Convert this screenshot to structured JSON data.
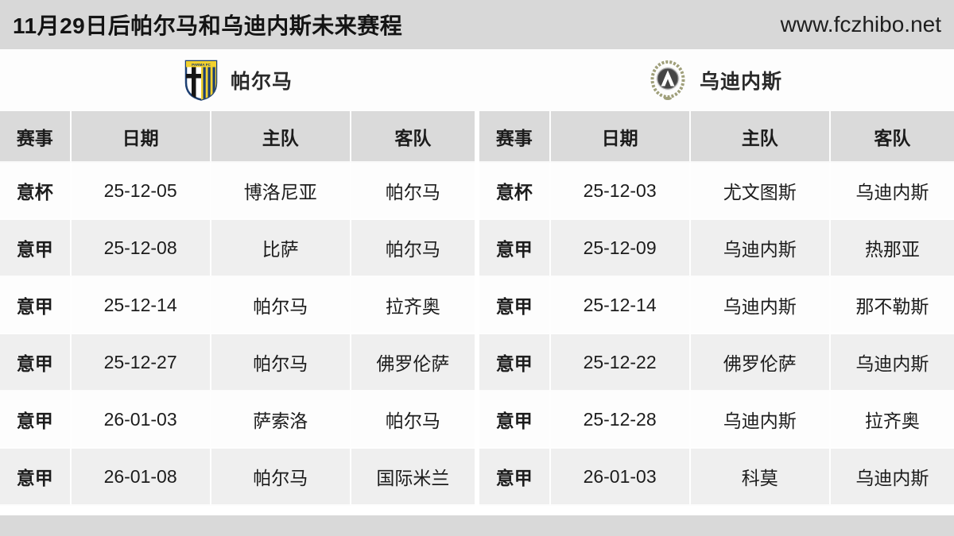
{
  "header": {
    "title": "11月29日后帕尔马和乌迪内斯未来赛程",
    "site": "www.fczhibo.net"
  },
  "teams": [
    {
      "name": "帕尔马",
      "crest": "parma-crest"
    },
    {
      "name": "乌迪内斯",
      "crest": "udinese-crest"
    }
  ],
  "columns": [
    "赛事",
    "日期",
    "主队",
    "客队"
  ],
  "tables": [
    {
      "team": "帕尔马",
      "rows": [
        [
          "意杯",
          "25-12-05",
          "博洛尼亚",
          "帕尔马"
        ],
        [
          "意甲",
          "25-12-08",
          "比萨",
          "帕尔马"
        ],
        [
          "意甲",
          "25-12-14",
          "帕尔马",
          "拉齐奥"
        ],
        [
          "意甲",
          "25-12-27",
          "帕尔马",
          "佛罗伦萨"
        ],
        [
          "意甲",
          "26-01-03",
          "萨索洛",
          "帕尔马"
        ],
        [
          "意甲",
          "26-01-08",
          "帕尔马",
          "国际米兰"
        ]
      ]
    },
    {
      "team": "乌迪内斯",
      "rows": [
        [
          "意杯",
          "25-12-03",
          "尤文图斯",
          "乌迪内斯"
        ],
        [
          "意甲",
          "25-12-09",
          "乌迪内斯",
          "热那亚"
        ],
        [
          "意甲",
          "25-12-14",
          "乌迪内斯",
          "那不勒斯"
        ],
        [
          "意甲",
          "25-12-22",
          "佛罗伦萨",
          "乌迪内斯"
        ],
        [
          "意甲",
          "25-12-28",
          "乌迪内斯",
          "拉齐奥"
        ],
        [
          "意甲",
          "26-01-03",
          "科莫",
          "乌迪内斯"
        ]
      ]
    }
  ],
  "colors": {
    "topbar_bg": "#d8d8d8",
    "header_row_bg": "#dadada",
    "row_bg": "#fdfdfd",
    "row_alt_bg": "#efefef",
    "footer_bg": "#d9d9d9",
    "text": "#1c1c1c",
    "parma_yellow": "#f2d12e",
    "parma_blue": "#1d3f72",
    "udinese_dark": "#454545",
    "wreath_olive": "#9f9f7a"
  }
}
